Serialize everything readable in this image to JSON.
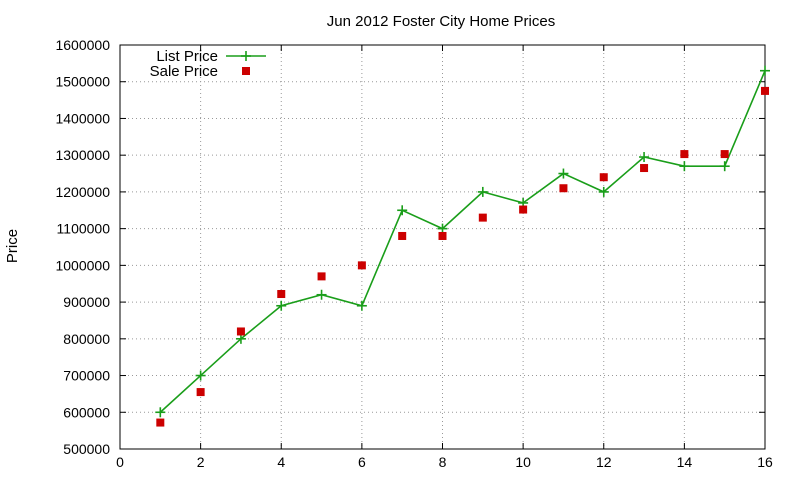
{
  "chart_data": {
    "type": "line",
    "title": "Jun 2012 Foster City Home Prices",
    "xlabel": "",
    "ylabel": "Price",
    "xlim": [
      0,
      16
    ],
    "ylim": [
      500000,
      1600000
    ],
    "x_ticks": [
      0,
      2,
      4,
      6,
      8,
      10,
      12,
      14,
      16
    ],
    "y_ticks": [
      500000,
      600000,
      700000,
      800000,
      900000,
      1000000,
      1100000,
      1200000,
      1300000,
      1400000,
      1500000,
      1600000
    ],
    "grid": true,
    "legend_position": "top-left",
    "series": [
      {
        "name": "List Price",
        "style": "line+cross",
        "color": "#1a9e1a",
        "x": [
          1,
          2,
          3,
          4,
          5,
          6,
          7,
          8,
          9,
          10,
          11,
          12,
          13,
          14,
          15,
          16
        ],
        "values": [
          600000,
          700000,
          800000,
          890000,
          920000,
          890000,
          1150000,
          1100000,
          1200000,
          1170000,
          1250000,
          1200000,
          1295000,
          1270000,
          1270000,
          1530000
        ]
      },
      {
        "name": "Sale Price",
        "style": "square",
        "color": "#cc0000",
        "x": [
          1,
          2,
          3,
          4,
          5,
          6,
          7,
          8,
          9,
          10,
          11,
          12,
          13,
          14,
          15,
          16
        ],
        "values": [
          572000,
          655000,
          820000,
          922000,
          970000,
          1000000,
          1080000,
          1080000,
          1130000,
          1152000,
          1210000,
          1240000,
          1265000,
          1303000,
          1303000,
          1475000
        ]
      }
    ]
  }
}
